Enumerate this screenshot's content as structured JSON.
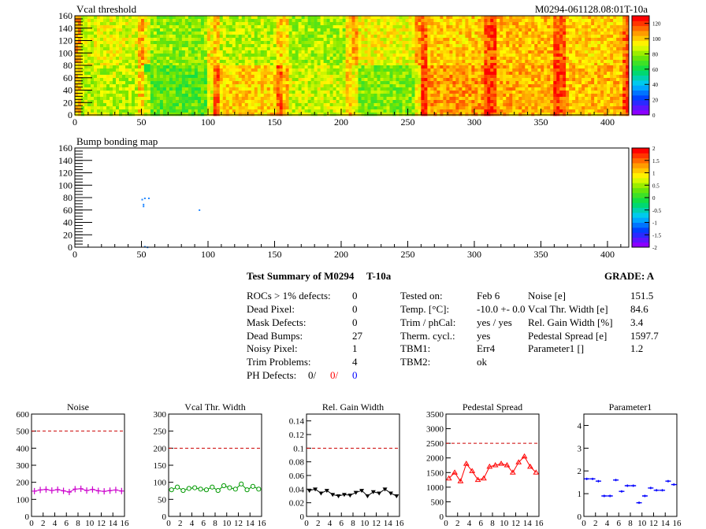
{
  "top_panel": {
    "title": "Vcal threshold",
    "run_id": "M0294-061128.08:01T-10a",
    "x_ticks": [
      0,
      50,
      100,
      150,
      200,
      250,
      300,
      350,
      400
    ],
    "y_ticks": [
      0,
      20,
      40,
      60,
      80,
      100,
      120,
      140,
      160
    ],
    "xlim": [
      0,
      416
    ],
    "ylim": [
      0,
      160
    ],
    "z_ticks": [
      0,
      20,
      40,
      60,
      80,
      100,
      120
    ],
    "zlim": [
      0,
      130
    ]
  },
  "bump_panel": {
    "title": "Bump bonding map",
    "x_ticks": [
      0,
      50,
      100,
      150,
      200,
      250,
      300,
      350,
      400
    ],
    "y_ticks": [
      0,
      20,
      40,
      60,
      80,
      100,
      120,
      140,
      160
    ],
    "xlim": [
      0,
      416
    ],
    "ylim": [
      0,
      160
    ],
    "z_ticks": [
      "2",
      "1.5",
      "1",
      "0.5",
      "0",
      "-0.5",
      "-1",
      "-1.5",
      "-2"
    ],
    "zlim": [
      -2,
      2
    ]
  },
  "summary": {
    "title": "Test Summary of M0294",
    "temp_label": "T-10a",
    "grade": "GRADE:  A",
    "col1": [
      {
        "label": "ROCs > 1% defects:",
        "value": "0"
      },
      {
        "label": "Dead Pixel:",
        "value": "0"
      },
      {
        "label": "Mask Defects:",
        "value": "0"
      },
      {
        "label": "Dead Bumps:",
        "value": "27"
      },
      {
        "label": "Noisy Pixel:",
        "value": "1"
      },
      {
        "label": "Trim Problems:",
        "value": "4"
      }
    ],
    "ph_label": "PH Defects:",
    "ph_values": [
      "0/",
      "0/",
      "0"
    ],
    "ph_colors": [
      "#000000",
      "#ff0000",
      "#0000ff"
    ],
    "col2": [
      {
        "label": "Tested on:",
        "value": "Feb 6"
      },
      {
        "label": "Temp. [°C]:",
        "value": "-10.0 +- 0.0"
      },
      {
        "label": "Trim / phCal:",
        "value": "yes / yes"
      },
      {
        "label": "Therm. cycl.:",
        "value": "yes"
      },
      {
        "label": "TBM1:",
        "value": "Err4"
      },
      {
        "label": "TBM2:",
        "value": "ok"
      }
    ],
    "col3": [
      {
        "label": "Noise [e]",
        "value": "151.5"
      },
      {
        "label": "Vcal Thr. Width [e]",
        "value": "84.6"
      },
      {
        "label": "Rel. Gain Width [%]",
        "value": "3.4"
      },
      {
        "label": "Pedestal Spread [e]",
        "value": "1597.7"
      },
      {
        "label": "Parameter1 []",
        "value": "1.2"
      }
    ]
  },
  "chart_data": [
    {
      "type": "scatter",
      "title": "Noise",
      "x": [
        0,
        1,
        2,
        3,
        4,
        5,
        6,
        7,
        8,
        9,
        10,
        11,
        12,
        13,
        14,
        15
      ],
      "values": [
        148,
        155,
        158,
        152,
        157,
        150,
        143,
        160,
        162,
        152,
        158,
        150,
        147,
        151,
        155,
        149
      ],
      "ylim": [
        0,
        600
      ],
      "yticks": [
        0,
        100,
        200,
        300,
        400,
        500,
        600
      ],
      "ref_line": 500,
      "color": "#cc00cc",
      "marker": "cross"
    },
    {
      "type": "scatter",
      "title": "Vcal Thr. Width",
      "x": [
        0,
        1,
        2,
        3,
        4,
        5,
        6,
        7,
        8,
        9,
        10,
        11,
        12,
        13,
        14,
        15
      ],
      "values": [
        78,
        86,
        76,
        82,
        84,
        80,
        78,
        86,
        76,
        90,
        84,
        80,
        95,
        78,
        88,
        80
      ],
      "ylim": [
        0,
        300
      ],
      "yticks": [
        0,
        50,
        100,
        150,
        200,
        250,
        300
      ],
      "ref_line": 200,
      "color": "#009900",
      "marker": "circle"
    },
    {
      "type": "scatter",
      "title": "Rel. Gain Width",
      "x": [
        0,
        1,
        2,
        3,
        4,
        5,
        6,
        7,
        8,
        9,
        10,
        11,
        12,
        13,
        14,
        15
      ],
      "values": [
        0.038,
        0.04,
        0.034,
        0.038,
        0.032,
        0.03,
        0.032,
        0.031,
        0.035,
        0.038,
        0.03,
        0.036,
        0.034,
        0.04,
        0.034,
        0.03
      ],
      "ylim": [
        0,
        0.15
      ],
      "yticks": [
        0,
        0.02,
        0.04,
        0.06,
        0.08,
        0.1,
        0.12,
        0.14
      ],
      "ref_line": 0.1,
      "color": "#000000",
      "marker": "triangle-down"
    },
    {
      "type": "scatter",
      "title": "Pedestal Spread",
      "x": [
        0,
        1,
        2,
        3,
        4,
        5,
        6,
        7,
        8,
        9,
        10,
        11,
        12,
        13,
        14,
        15
      ],
      "values": [
        1300,
        1500,
        1200,
        1800,
        1550,
        1250,
        1300,
        1700,
        1750,
        1800,
        1750,
        1500,
        1850,
        2050,
        1700,
        1500
      ],
      "ylim": [
        0,
        3500
      ],
      "yticks": [
        0,
        500,
        1000,
        1500,
        2000,
        2500,
        3000,
        3500
      ],
      "ref_line": 2500,
      "color": "#ff0000",
      "marker": "triangle-up"
    },
    {
      "type": "scatter",
      "title": "Parameter1",
      "x": [
        0,
        1,
        2,
        3,
        4,
        5,
        6,
        7,
        8,
        9,
        10,
        11,
        12,
        13,
        14,
        15
      ],
      "values": [
        1.65,
        1.65,
        1.55,
        0.9,
        0.9,
        1.6,
        1.1,
        1.35,
        1.35,
        0.6,
        0.9,
        1.25,
        1.15,
        1.15,
        1.55,
        1.4
      ],
      "ylim": [
        0,
        4.5
      ],
      "yticks": [
        0,
        1,
        2,
        3,
        4
      ],
      "ref_line": null,
      "color": "#0000ff",
      "marker": "hline"
    }
  ]
}
